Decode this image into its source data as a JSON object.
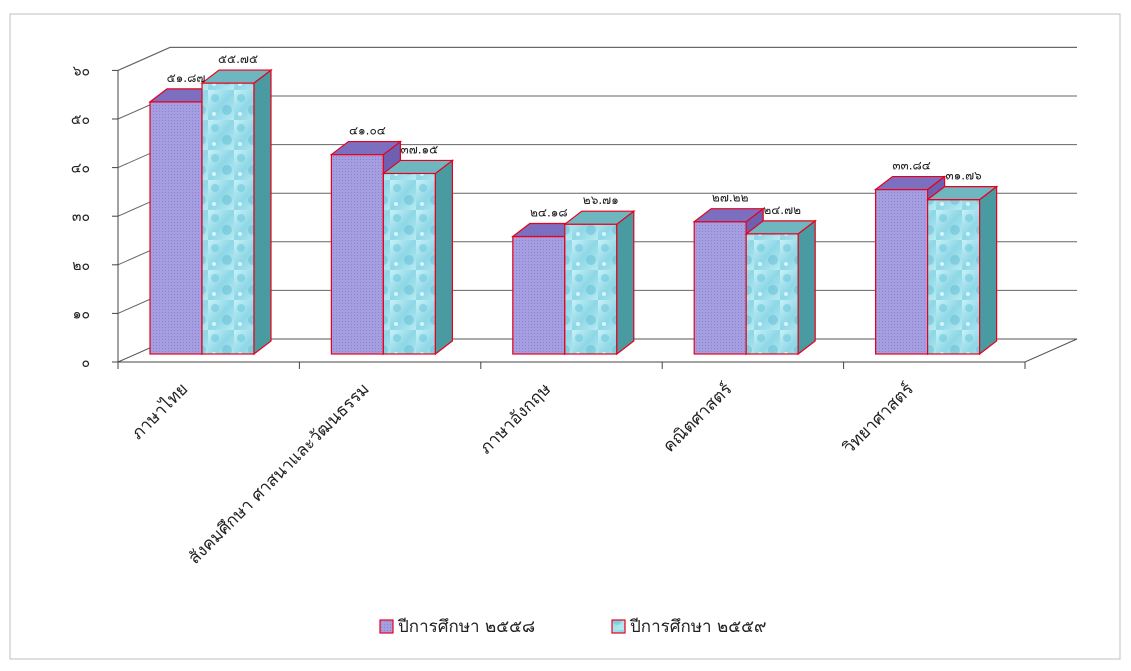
{
  "chart_data": {
    "type": "bar",
    "categories": [
      "ภาษาไทย",
      "สังคมศึกษา ศาสนาและวัฒนธรรม",
      "ภาษาอังกฤษ",
      "คณิตศาสตร์",
      "วิทยาศาสตร์"
    ],
    "series": [
      {
        "name": "ปีการศึกษา ๒๕๕๘",
        "values": [
          51.87,
          41.04,
          24.18,
          27.22,
          33.84
        ],
        "value_labels": [
          "๕๑.๘๗",
          "๔๑.๐๔",
          "๒๔.๑๘",
          "๒๗.๒๒",
          "๓๓.๘๔"
        ],
        "color": "#9d95d8"
      },
      {
        "name": "ปีการศึกษา ๒๕๕๙",
        "values": [
          55.75,
          37.15,
          26.71,
          24.72,
          31.76
        ],
        "value_labels": [
          "๕๕.๗๕",
          "๓๗.๑๕",
          "๒๖.๗๑",
          "๒๔.๗๒",
          "๓๑.๗๖"
        ],
        "color": "#9fe2ee"
      }
    ],
    "y_ticks": [
      0,
      10,
      20,
      30,
      40,
      50,
      60
    ],
    "y_tick_labels": [
      "๐",
      "๑๐",
      "๒๐",
      "๓๐",
      "๔๐",
      "๕๐",
      "๖๐"
    ],
    "ylim": [
      0,
      60
    ],
    "grid": true,
    "style": "3d-column",
    "legend_position": "bottom",
    "edge_color": "#e8001c"
  }
}
